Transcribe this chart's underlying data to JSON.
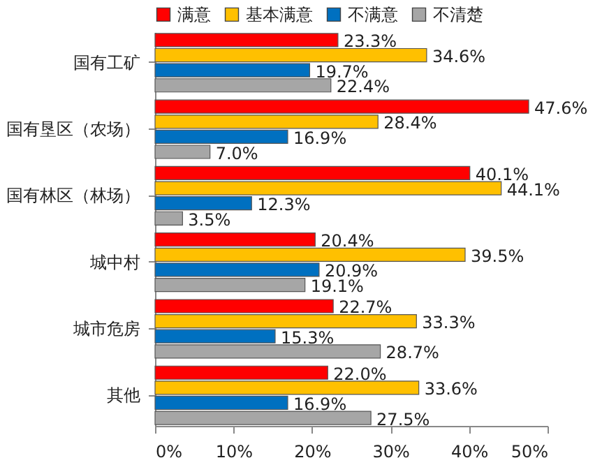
{
  "chart_data": {
    "type": "bar",
    "orientation": "horizontal",
    "legend": "top left",
    "categories": [
      "国有工矿",
      "国有垦区（农场）",
      "国有林区（林场）",
      "城中村",
      "城市危房",
      "其他"
    ],
    "series": [
      {
        "name": "满意",
        "color": "#ff0000",
        "values": [
          23.3,
          47.6,
          40.1,
          20.4,
          22.7,
          22.0
        ],
        "value_labels": [
          "23.3%",
          "47.6%",
          "40.1%",
          "20.4%",
          "22.7%",
          "22.0%"
        ]
      },
      {
        "name": "基本满意",
        "color": "#ffc000",
        "values": [
          34.6,
          28.4,
          44.1,
          39.5,
          33.3,
          33.6
        ],
        "value_labels": [
          "34.6%",
          "28.4%",
          "44.1%",
          "39.5%",
          "33.3%",
          "33.6%"
        ]
      },
      {
        "name": "不满意",
        "color": "#0070c0",
        "values": [
          19.7,
          16.9,
          12.3,
          20.9,
          15.3,
          16.9
        ],
        "value_labels": [
          "19.7%",
          "16.9%",
          "12.3%",
          "20.9%",
          "15.3%",
          "16.9%"
        ]
      },
      {
        "name": "不清楚",
        "color": "#a6a6a6",
        "values": [
          22.4,
          7.0,
          3.5,
          19.1,
          28.7,
          27.5
        ],
        "value_labels": [
          "22.4%",
          "7.0%",
          "3.5%",
          "19.1%",
          "28.7%",
          "27.5%"
        ]
      }
    ],
    "xlim": [
      0,
      50
    ],
    "xticks": [
      {
        "value": 0,
        "label": "0%"
      },
      {
        "value": 10,
        "label": "10%"
      },
      {
        "value": 20,
        "label": "20%"
      },
      {
        "value": 30,
        "label": "30%"
      },
      {
        "value": 40,
        "label": "40%"
      },
      {
        "value": 50,
        "label": "50%"
      }
    ]
  }
}
